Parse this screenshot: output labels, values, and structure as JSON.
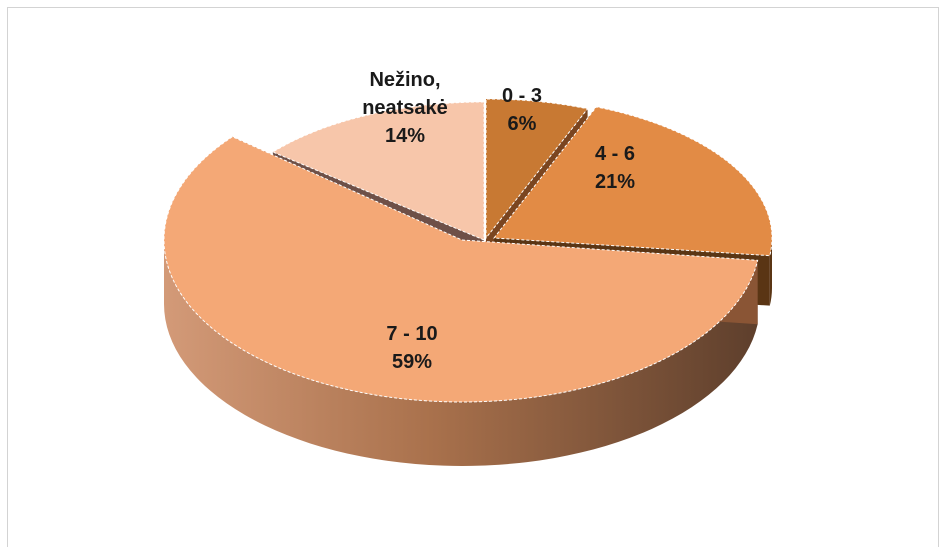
{
  "chart_data": {
    "type": "pie",
    "style": "3d-exploded",
    "slices": [
      {
        "category": "0 - 3",
        "value": 6,
        "label": "6%",
        "color": "#c87933"
      },
      {
        "category": "4 - 6",
        "value": 21,
        "label": "21%",
        "color": "#e28b45"
      },
      {
        "category": "7 - 10",
        "value": 59,
        "label": "59%",
        "color": "#f4a876"
      },
      {
        "category": "Nežino, neatsakė",
        "category_lines": [
          "Nežino,",
          "neatsakė"
        ],
        "value": 14,
        "label": "14%",
        "color": "#f7c6aa"
      }
    ],
    "side_colors": {
      "0 - 3": "#7a4520",
      "4 - 6": "#5a3514",
      "7 - 10": "#8a5535",
      "Nežino, neatsakė": "#6e5048"
    }
  }
}
